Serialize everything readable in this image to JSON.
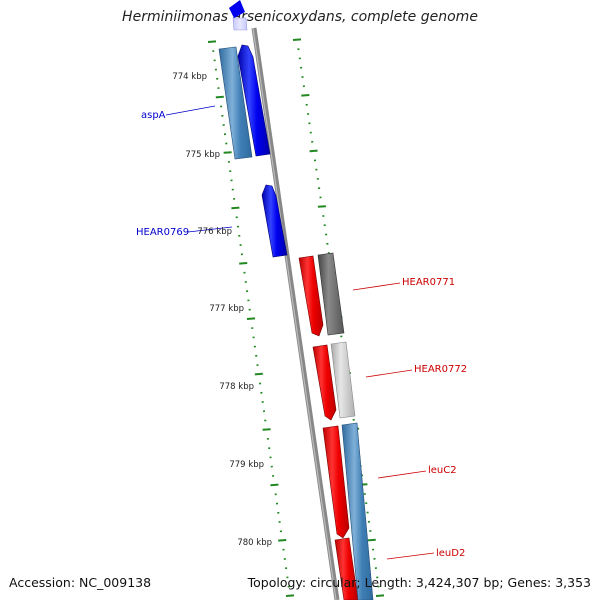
{
  "title": "Herminiimonas arsenicoxydans, complete genome",
  "footer": {
    "accession": "Accession: NC_009138",
    "summary": "Topology: circular; Length: 3,424,307 bp; Genes: 3,353"
  },
  "colors": {
    "backbone": "#888888",
    "forward_gene": "#0000ee",
    "reverse_gene": "#ee0000",
    "cds_feature": "#3f7fb5",
    "gene_grey": "#6b6b6b",
    "gene_lightgrey": "#c6c6c6",
    "tick": "#228822",
    "label_blue": "#0000cc",
    "label_red": "#cc0000"
  },
  "scale": {
    "labels": [
      "774 kbp",
      "775 kbp",
      "776 kbp",
      "777 kbp",
      "778 kbp",
      "779 kbp",
      "780 kbp"
    ]
  },
  "gene_labels": [
    {
      "text": "aspA",
      "color": "blue"
    },
    {
      "text": "HEAR0769",
      "color": "blue"
    },
    {
      "text": "HEAR0771",
      "color": "red"
    },
    {
      "text": "HEAR0772",
      "color": "red"
    },
    {
      "text": "leuC2",
      "color": "red"
    },
    {
      "text": "leuD2",
      "color": "red"
    }
  ]
}
